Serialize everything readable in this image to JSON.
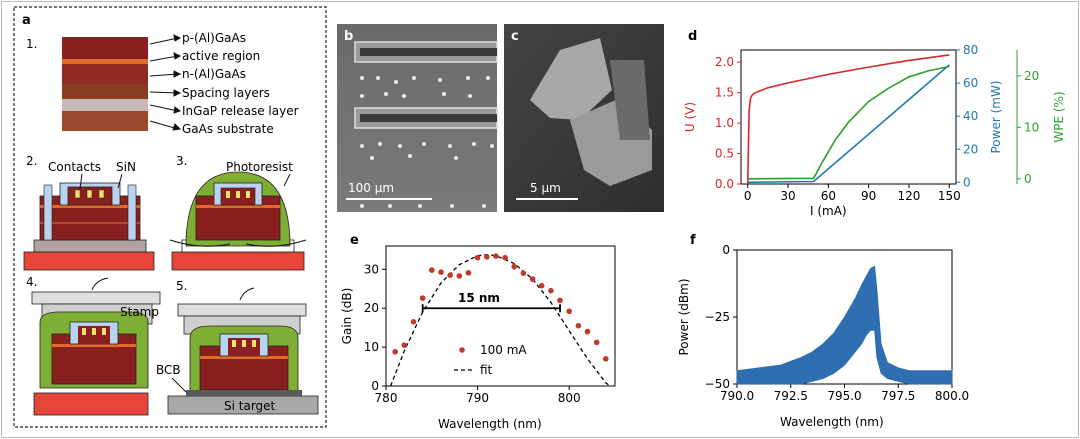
{
  "panels": {
    "a": {
      "letter": "a",
      "steps": [
        "1.",
        "2.",
        "3.",
        "4.",
        "5."
      ],
      "layer_labels": [
        "p-(Al)GaAs",
        "active region",
        "n-(Al)GaAs",
        "Spacing layers",
        "InGaP release layer",
        "GaAs substrate"
      ],
      "step2_labels": {
        "contacts": "Contacts",
        "sin": "SiN"
      },
      "step3_labels": {
        "photoresist": "Photoresist"
      },
      "step4_labels": {
        "stamp": "Stamp",
        "bcb": "BCB"
      },
      "step5_labels": {
        "si_target": "Si target"
      },
      "colors": {
        "p_layer": "#8a1f1f",
        "active": "#e06a2a",
        "n_layer": "#8e2a22",
        "spacing": "#8a3c22",
        "release": "#c9b8b8",
        "substrate": "#9a4a2a",
        "red_target": "#e8453a",
        "resist": "#7fae35",
        "sin": "#b9d2ee",
        "stamp": "#cfcfcf",
        "si_target": "#a8a8a8"
      }
    },
    "b": {
      "letter": "b",
      "scalebar": "100 μm"
    },
    "c": {
      "letter": "c",
      "scalebar": "5 μm"
    },
    "d": {
      "letter": "d",
      "xlabel": "I (mA)",
      "ylabel_left": "U (V)",
      "ylabel_mid": "Power (mW)",
      "ylabel_right": "WPE (%)",
      "colors": {
        "voltage": "#d62728",
        "power": "#1f77b4",
        "wpe": "#2ca02c"
      }
    },
    "e": {
      "letter": "e",
      "annotation": "15 nm",
      "legend_points": "100 mA",
      "legend_fit": "fit"
    },
    "f": {
      "letter": "f"
    }
  },
  "chart_data": [
    {
      "type": "line",
      "panel": "d",
      "xlabel": "I (mA)",
      "xlim": [
        -5,
        155
      ],
      "xticks": [
        0,
        30,
        60,
        90,
        120,
        150
      ],
      "series": [
        {
          "name": "U (V)",
          "axis": "left",
          "ylim": [
            0,
            2.2
          ],
          "yticks": [
            0.0,
            0.5,
            1.0,
            1.5,
            2.0
          ],
          "x": [
            0,
            0.5,
            1,
            2,
            3,
            5,
            8,
            15,
            30,
            60,
            90,
            120,
            150
          ],
          "y": [
            0,
            0.6,
            1.2,
            1.4,
            1.45,
            1.49,
            1.52,
            1.58,
            1.66,
            1.8,
            1.92,
            2.03,
            2.12
          ]
        },
        {
          "name": "Power (mW)",
          "axis": "mid",
          "ylim": [
            -1,
            80
          ],
          "yticks": [
            0,
            20,
            40,
            60,
            80
          ],
          "x": [
            0,
            49,
            150
          ],
          "y": [
            0,
            0.5,
            71
          ]
        },
        {
          "name": "WPE (%)",
          "axis": "right",
          "ylim": [
            -1,
            25
          ],
          "yticks": [
            0,
            10,
            20
          ],
          "x": [
            0,
            49,
            55,
            65,
            75,
            90,
            105,
            120,
            135,
            150
          ],
          "y": [
            0,
            0.1,
            3,
            7.5,
            11,
            15,
            17.6,
            19.8,
            21.0,
            21.8
          ]
        }
      ]
    },
    {
      "type": "scatter",
      "panel": "e",
      "xlabel": "Wavelength (nm)",
      "ylabel": "Gain (dB)",
      "xlim": [
        780,
        805
      ],
      "ylim": [
        0,
        36
      ],
      "xticks": [
        780,
        790,
        800
      ],
      "yticks": [
        0,
        10,
        20,
        30
      ],
      "series": [
        {
          "name": "100 mA",
          "x": [
            781,
            782,
            783,
            784,
            785,
            786,
            787,
            788,
            789,
            790,
            791,
            792,
            793,
            794,
            795,
            796,
            797,
            798,
            799,
            800,
            801,
            802,
            803,
            804
          ],
          "y": [
            8.8,
            10.5,
            16.5,
            22.6,
            29.8,
            29.3,
            28.5,
            28.3,
            29.1,
            33.0,
            33.2,
            33.4,
            33.0,
            30.7,
            29.0,
            27.5,
            25.8,
            24.5,
            22.0,
            19.2,
            15.5,
            14.0,
            11.2,
            7.0
          ]
        },
        {
          "name": "fit",
          "style": "dashed",
          "x": [
            780.5,
            782,
            784,
            786,
            788,
            790,
            791,
            792,
            794,
            796,
            798,
            800,
            802,
            804,
            804.5
          ],
          "y": [
            0,
            9.0,
            19.0,
            26.5,
            31.2,
            33.5,
            33.8,
            33.5,
            31.5,
            27.5,
            21.5,
            14.2,
            7.0,
            0.8,
            0
          ]
        }
      ],
      "annotation": {
        "text": "15 nm",
        "x_from": 784,
        "x_to": 799,
        "y": 20
      }
    },
    {
      "type": "area",
      "panel": "f",
      "xlabel": "Wavelength (nm)",
      "ylabel": "Power (dBm)",
      "xlim": [
        790,
        800
      ],
      "ylim": [
        -50,
        0
      ],
      "xticks": [
        790.0,
        792.5,
        795.0,
        797.5,
        800.0
      ],
      "yticks": [
        0,
        -25,
        -50
      ],
      "series": [
        {
          "name": "spectrum",
          "color": "#2f6eb0",
          "x": [
            790,
            791,
            792,
            793,
            793.5,
            794,
            794.5,
            795,
            795.5,
            795.8,
            796.0,
            796.2,
            796.4,
            796.5,
            796.7,
            797,
            797.5,
            798,
            799,
            800
          ],
          "y_low": [
            -50,
            -50,
            -50,
            -50,
            -49,
            -48,
            -46,
            -43,
            -38,
            -35,
            -32,
            -30,
            -30,
            -40,
            -46,
            -48,
            -49,
            -50,
            -50,
            -50
          ],
          "y_high": [
            -45,
            -44,
            -43,
            -40,
            -38,
            -35,
            -31,
            -25,
            -18,
            -13,
            -10,
            -7,
            -6,
            -14,
            -35,
            -42,
            -44,
            -45,
            -45,
            -45
          ]
        }
      ]
    }
  ]
}
